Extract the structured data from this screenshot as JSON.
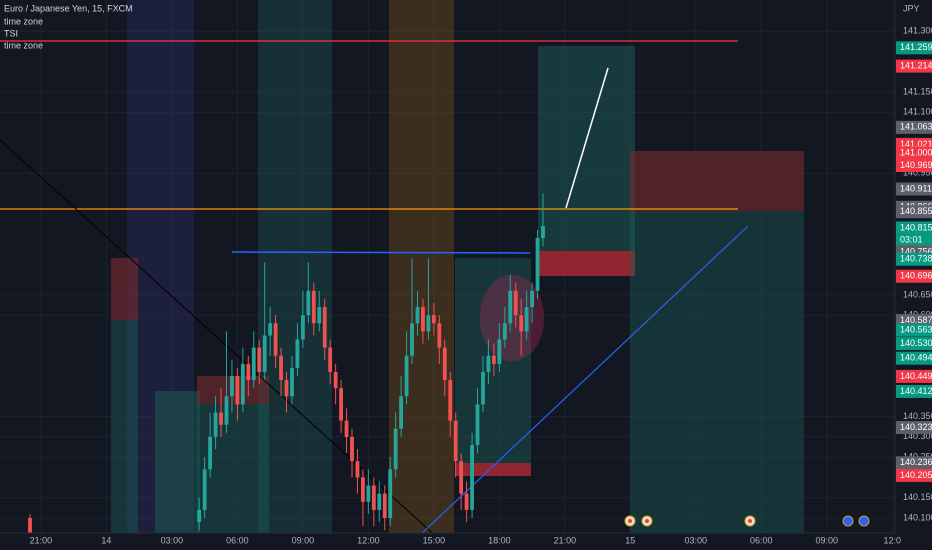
{
  "chart_data": {
    "type": "candlestick",
    "title": "Euro / Japanese Yen, 15, FXCM",
    "indicators": [
      "time zone",
      "TSI",
      "time zone"
    ],
    "currency": "JPY",
    "countdown": "03:01",
    "x": [
      -2,
      29,
      30,
      31,
      32,
      33,
      34,
      35,
      36,
      37,
      38,
      39,
      40,
      41,
      42,
      43,
      44,
      45,
      46,
      47,
      48,
      49,
      50,
      51,
      52,
      53,
      54,
      55,
      56,
      57,
      58,
      59,
      60,
      61,
      62,
      63,
      64,
      65,
      66,
      67,
      68,
      69,
      70,
      71,
      72,
      73,
      74,
      75,
      76,
      77,
      78,
      79,
      80,
      81,
      82,
      83,
      84,
      85,
      86,
      87,
      88,
      89,
      90,
      91,
      92
    ],
    "open": [
      140.1,
      140.09,
      140.12,
      140.22,
      140.3,
      140.36,
      140.33,
      140.4,
      140.45,
      140.38,
      140.48,
      140.44,
      140.52,
      140.46,
      140.55,
      140.58,
      140.5,
      140.44,
      140.4,
      140.47,
      140.54,
      140.6,
      140.66,
      140.58,
      140.62,
      140.52,
      140.46,
      140.42,
      140.34,
      140.3,
      140.24,
      140.2,
      140.14,
      140.18,
      140.12,
      140.16,
      140.1,
      140.22,
      140.32,
      140.4,
      140.5,
      140.58,
      140.62,
      140.56,
      140.6,
      140.58,
      140.52,
      140.44,
      140.34,
      140.24,
      140.16,
      140.12,
      140.28,
      140.38,
      140.46,
      140.5,
      140.48,
      140.54,
      140.58,
      140.66,
      140.6,
      140.56,
      140.62,
      140.66,
      140.79
    ],
    "high": [
      140.11,
      140.15,
      140.25,
      140.36,
      140.4,
      140.42,
      140.56,
      140.49,
      140.47,
      140.52,
      140.5,
      140.56,
      140.54,
      140.73,
      140.62,
      140.6,
      140.52,
      140.46,
      140.5,
      140.58,
      140.66,
      140.73,
      140.68,
      140.66,
      140.64,
      140.54,
      140.48,
      140.44,
      140.37,
      140.32,
      140.27,
      140.22,
      140.22,
      140.2,
      140.19,
      140.18,
      140.25,
      140.36,
      140.45,
      140.56,
      140.74,
      140.66,
      140.64,
      140.74,
      140.63,
      140.6,
      140.54,
      140.46,
      140.36,
      140.26,
      140.19,
      140.31,
      140.42,
      140.5,
      140.54,
      140.53,
      140.58,
      140.62,
      140.7,
      140.68,
      140.64,
      140.66,
      140.68,
      140.81,
      140.9
    ],
    "low": [
      140.06,
      140.07,
      140.1,
      140.2,
      140.27,
      140.3,
      140.31,
      140.36,
      140.34,
      140.36,
      140.4,
      140.42,
      140.43,
      140.44,
      140.5,
      140.47,
      140.4,
      140.36,
      140.38,
      140.45,
      140.52,
      140.58,
      140.55,
      140.56,
      140.49,
      140.43,
      140.38,
      140.31,
      140.26,
      140.2,
      140.16,
      140.08,
      140.11,
      140.08,
      140.09,
      140.07,
      140.08,
      140.2,
      140.3,
      140.38,
      140.48,
      140.55,
      140.53,
      140.54,
      140.55,
      140.48,
      140.4,
      140.3,
      140.2,
      140.12,
      140.09,
      140.1,
      140.26,
      140.36,
      140.43,
      140.45,
      140.46,
      140.52,
      140.56,
      140.57,
      140.5,
      140.54,
      140.58,
      140.64,
      140.77
    ],
    "close": [
      140.06,
      140.12,
      140.22,
      140.3,
      140.36,
      140.33,
      140.4,
      140.45,
      140.38,
      140.48,
      140.44,
      140.52,
      140.46,
      140.55,
      140.58,
      140.5,
      140.44,
      140.4,
      140.47,
      140.54,
      140.6,
      140.66,
      140.58,
      140.62,
      140.52,
      140.46,
      140.42,
      140.34,
      140.3,
      140.24,
      140.2,
      140.14,
      140.18,
      140.12,
      140.16,
      140.1,
      140.22,
      140.32,
      140.4,
      140.5,
      140.58,
      140.62,
      140.56,
      140.6,
      140.58,
      140.52,
      140.44,
      140.34,
      140.24,
      140.16,
      140.12,
      140.28,
      140.38,
      140.46,
      140.5,
      140.48,
      140.54,
      140.58,
      140.66,
      140.6,
      140.56,
      140.62,
      140.66,
      140.79,
      140.82
    ],
    "up_color": "#26a69a",
    "down_color": "#ef5350",
    "xlim": [
      -7.5,
      156.5
    ],
    "xticks": [
      {
        "value": 0,
        "label": "21:00"
      },
      {
        "value": 12,
        "label": "14"
      },
      {
        "value": 24,
        "label": "03:00"
      },
      {
        "value": 36,
        "label": "06:00"
      },
      {
        "value": 48,
        "label": "09:00"
      },
      {
        "value": 60,
        "label": "12:00"
      },
      {
        "value": 72,
        "label": "15:00"
      },
      {
        "value": 84,
        "label": "18:00"
      },
      {
        "value": 96,
        "label": "21:00"
      },
      {
        "value": 108,
        "label": "15"
      },
      {
        "value": 120,
        "label": "03:00"
      },
      {
        "value": 132,
        "label": "06:00"
      },
      {
        "value": 144,
        "label": "09:00"
      },
      {
        "value": 156,
        "label": "12:0"
      }
    ],
    "ylim": [
      140.063,
      141.377
    ],
    "yticks": [
      {
        "value": 141.3,
        "label": "141.300"
      },
      {
        "value": 141.15,
        "label": "141.150"
      },
      {
        "value": 141.1,
        "label": "141.100"
      },
      {
        "value": 140.95,
        "label": "140.950"
      },
      {
        "value": 140.65,
        "label": "140.650"
      },
      {
        "value": 140.6,
        "label": "140.600"
      },
      {
        "value": 140.35,
        "label": "140.350"
      },
      {
        "value": 140.3,
        "label": "140.300"
      },
      {
        "value": 140.25,
        "label": "140.250"
      },
      {
        "value": 140.15,
        "label": "140.150"
      },
      {
        "value": 140.1,
        "label": "140.100"
      }
    ],
    "grid": true,
    "price_labels": {
      "values": [
        141.259,
        141.214,
        141.063,
        141.021,
        141.0,
        140.969,
        140.911,
        140.866,
        140.855,
        140.815,
        140.756,
        140.738,
        140.696,
        140.587,
        140.563,
        140.53,
        140.494,
        140.449,
        140.412,
        140.323,
        140.236,
        140.205
      ],
      "value_labels": [
        "141.259",
        "141.214",
        "141.063",
        "141.021",
        "141.000",
        "140.969",
        "140.911",
        "140.866",
        "140.855",
        "140.815",
        "140.756",
        "140.738",
        "140.696",
        "140.587",
        "140.563",
        "140.530",
        "140.494",
        "140.449",
        "140.412",
        "140.323",
        "140.236",
        "140.205"
      ],
      "colors": [
        "#089981",
        "#f23645",
        "#5d606b",
        "#f23645",
        "#f23645",
        "#f23645",
        "#5d606b",
        "#5d606b",
        "#5d606b",
        "#089981",
        "#5d606b",
        "#089981",
        "#f23645",
        "#5d606b",
        "#089981",
        "#089981",
        "#089981",
        "#f23645",
        "#089981",
        "#5d606b",
        "#5d606b",
        "#f23645"
      ]
    }
  }
}
